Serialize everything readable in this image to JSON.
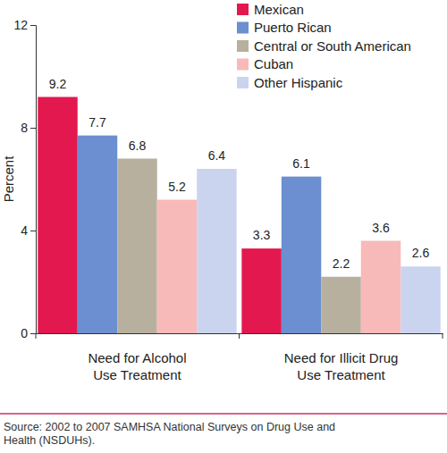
{
  "chart_data": {
    "type": "bar",
    "categories": [
      "Need for Alcohol\nUse Treatment",
      "Need for Illicit Drug\nUse Treatment"
    ],
    "series": [
      {
        "name": "Mexican",
        "color": "#e3184e",
        "values": [
          9.2,
          3.3
        ]
      },
      {
        "name": "Puerto Rican",
        "color": "#6b8fd0",
        "values": [
          7.7,
          6.1
        ]
      },
      {
        "name": "Central or South American",
        "color": "#b8b09e",
        "values": [
          6.8,
          2.2
        ]
      },
      {
        "name": "Cuban",
        "color": "#f8b9b9",
        "values": [
          5.2,
          3.6
        ]
      },
      {
        "name": "Other Hispanic",
        "color": "#cbd4ef",
        "values": [
          6.4,
          2.6
        ]
      }
    ],
    "y_label": "Percent",
    "ylim": [
      0,
      12
    ],
    "yticks": [
      0,
      4,
      8,
      12
    ],
    "data_labels": true,
    "legend": "upper right",
    "grid": false,
    "source": "Source: 2002 to 2007 SAMHSA National Surveys on Drug Use and\nHealth (NSDUHs)."
  }
}
